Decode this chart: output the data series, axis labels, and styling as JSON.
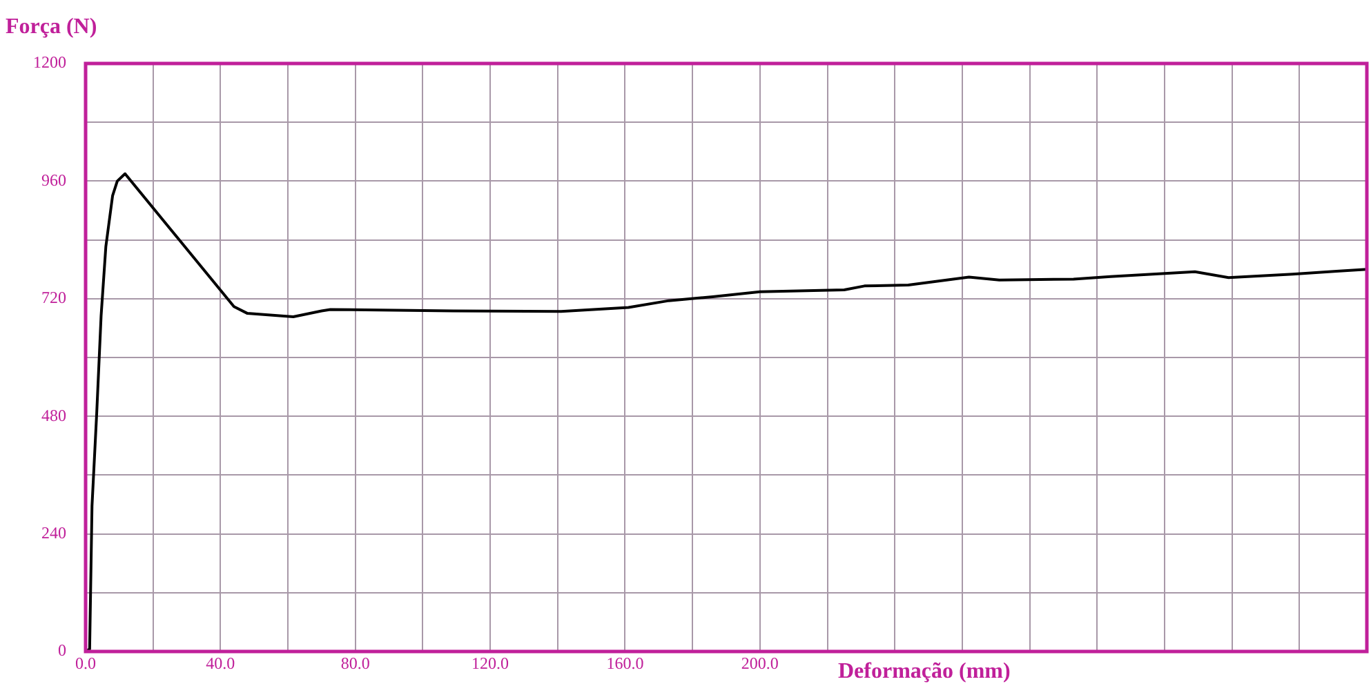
{
  "chart_data": {
    "type": "line",
    "xlabel": "Deformação (mm)",
    "ylabel": "Força (N)",
    "x": [
      0,
      1.2,
      1.9,
      3.3,
      4.6,
      6,
      8,
      9.4,
      11.7,
      44,
      48,
      61.6,
      70,
      72.6,
      109,
      141,
      161,
      173,
      186,
      200,
      225,
      231,
      244,
      262,
      271,
      293,
      304,
      329,
      339,
      358,
      371,
      380
    ],
    "series": [
      {
        "color": "#000000",
        "values": [
          0,
          5,
          297,
          487,
          685,
          826,
          930,
          960,
          975,
          704,
          690,
          683,
          695,
          698,
          695,
          694,
          702,
          716,
          724,
          734,
          738,
          746,
          748,
          764,
          758,
          760,
          765,
          775,
          763,
          770,
          776,
          780
        ]
      }
    ],
    "xlim": [
      0,
      380
    ],
    "xticks": [
      {
        "value": 0,
        "label": "0.0"
      },
      {
        "value": 20,
        "label": null
      },
      {
        "value": 40,
        "label": "40.0"
      },
      {
        "value": 60,
        "label": null
      },
      {
        "value": 80,
        "label": "80.0"
      },
      {
        "value": 100,
        "label": null
      },
      {
        "value": 120,
        "label": "120.0"
      },
      {
        "value": 140,
        "label": null
      },
      {
        "value": 160,
        "label": "160.0"
      },
      {
        "value": 180,
        "label": null
      },
      {
        "value": 200,
        "label": "200.0"
      },
      {
        "value": 220,
        "label": null
      },
      {
        "value": 240,
        "label": null
      },
      {
        "value": 260,
        "label": null
      },
      {
        "value": 280,
        "label": null
      },
      {
        "value": 300,
        "label": null
      },
      {
        "value": 320,
        "label": null
      },
      {
        "value": 340,
        "label": null
      },
      {
        "value": 360,
        "label": null
      }
    ],
    "ylim": [
      0,
      1200
    ],
    "yticks": [
      0,
      {
        "value": 120,
        "label": null
      },
      240,
      {
        "value": 360,
        "label": null
      },
      480,
      {
        "value": 600,
        "label": null
      },
      720,
      {
        "value": 840,
        "label": null
      },
      960,
      {
        "value": 1080,
        "label": null
      },
      1200
    ],
    "grid": true,
    "legend": false,
    "marker": "none",
    "line_style": "solid"
  }
}
